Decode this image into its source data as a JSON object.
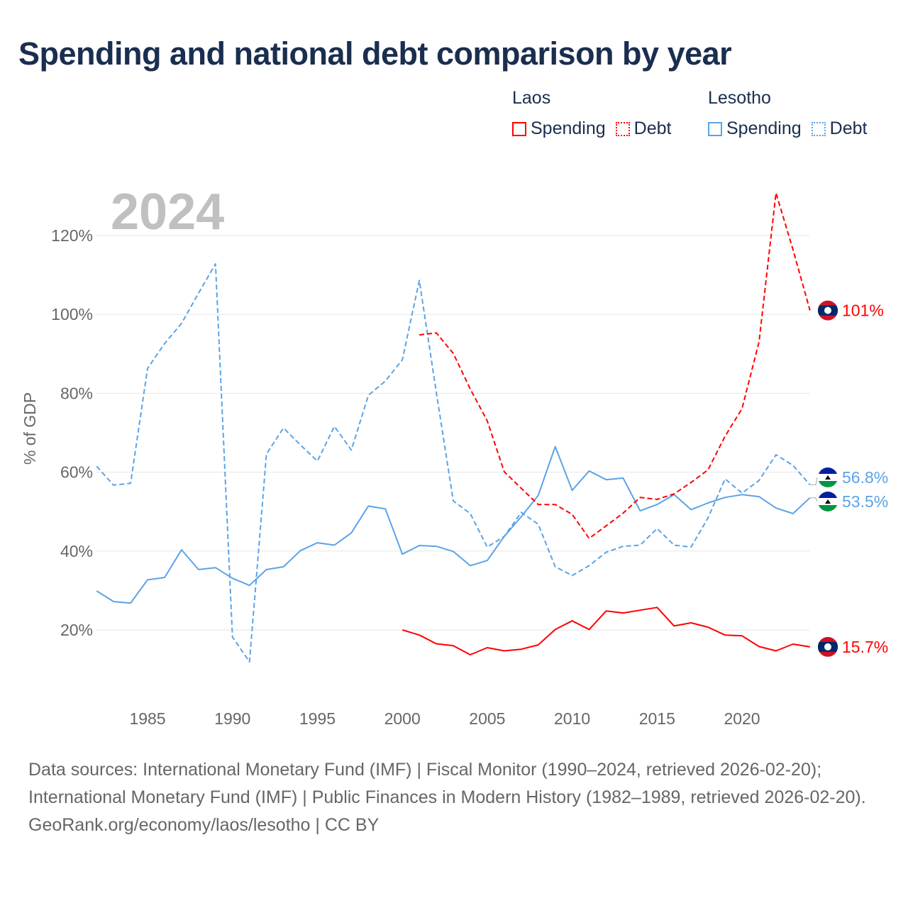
{
  "title": "Spending and national debt comparison by year",
  "legend": {
    "groups": [
      {
        "name": "Laos",
        "items": [
          {
            "label": "Spending",
            "style": "solid",
            "color": "#ff0000"
          },
          {
            "label": "Debt",
            "style": "dotted",
            "color": "#ff0000"
          }
        ]
      },
      {
        "name": "Lesotho",
        "items": [
          {
            "label": "Spending",
            "style": "solid",
            "color": "#5ba3e6"
          },
          {
            "label": "Debt",
            "style": "dotted",
            "color": "#5ba3e6"
          }
        ]
      }
    ]
  },
  "year_label": "2024",
  "footer": {
    "sources": "Data sources: International Monetary Fund (IMF) | Fiscal Monitor (1990–2024, retrieved 2026-02-20); International Monetary Fund (IMF) | Public Finances in Modern History (1982–1989, retrieved 2026-02-20).",
    "credit": "GeoRank.org/economy/laos/lesotho | CC BY"
  },
  "chart_data": {
    "type": "line",
    "title": "Spending and national debt comparison by year",
    "xlabel": "",
    "ylabel": "% of GDP",
    "xlim": [
      1982,
      2024
    ],
    "ylim": [
      0,
      130
    ],
    "grid": true,
    "legend_position": "top-right",
    "x_ticks": [
      1985,
      1990,
      1995,
      2000,
      2005,
      2010,
      2015,
      2020
    ],
    "y_ticks": [
      {
        "value": 20,
        "label": "20%"
      },
      {
        "value": 40,
        "label": "40%"
      },
      {
        "value": 60,
        "label": "60%"
      },
      {
        "value": 80,
        "label": "80%"
      },
      {
        "value": 100,
        "label": "100%"
      },
      {
        "value": 120,
        "label": "120%"
      }
    ],
    "series": [
      {
        "name": "Lesotho Debt",
        "country": "Lesotho",
        "color": "#5ba3e6",
        "dash": true,
        "start": 1982,
        "end_label": "56.8%",
        "values": [
          61.5,
          56.7,
          57.2,
          86.3,
          92.6,
          97.7,
          105.4,
          112.8,
          18.2,
          11.9,
          64.6,
          71.2,
          66.9,
          62.8,
          71.6,
          65.6,
          79.5,
          83.1,
          88.5,
          108.6,
          80.2,
          52.7,
          49.5,
          41,
          43.7,
          49.8,
          46.8,
          36,
          33.8,
          36.3,
          39.7,
          41.2,
          41.5,
          45.7,
          41.5,
          41,
          48.4,
          58.3,
          54.7,
          57.9,
          64.4,
          61.7,
          56.8
        ]
      },
      {
        "name": "Lesotho Spending",
        "country": "Lesotho",
        "color": "#5ba3e6",
        "dash": false,
        "start": 1982,
        "end_label": "53.5%",
        "values": [
          29.9,
          27.2,
          26.8,
          32.7,
          33.3,
          40.3,
          35.3,
          35.8,
          33.1,
          31.3,
          35.3,
          36,
          40.1,
          42.1,
          41.5,
          44.6,
          51.4,
          50.7,
          39.2,
          41.4,
          41.2,
          39.9,
          36.3,
          37.6,
          43.7,
          48.7,
          54.1,
          66.5,
          55.4,
          60.3,
          58.1,
          58.5,
          50.2,
          51.8,
          54.3,
          50.5,
          52.2,
          53.6,
          54.3,
          53.8,
          50.9,
          49.5,
          53.5
        ]
      },
      {
        "name": "Laos Debt",
        "country": "Laos",
        "color": "#ff0000",
        "dash": true,
        "start": 2001,
        "end_label": "101%",
        "values": [
          94.8,
          95.3,
          90.1,
          81.1,
          73,
          60.1,
          55.9,
          51.8,
          51.8,
          49.3,
          43.2,
          46.4,
          49.6,
          53.6,
          53.1,
          54.5,
          57.4,
          60.6,
          69.1,
          76.1,
          93,
          130.8,
          116.4,
          101
        ]
      },
      {
        "name": "Laos Spending",
        "country": "Laos",
        "color": "#ff0000",
        "dash": false,
        "start": 2000,
        "end_label": "15.7%",
        "values": [
          20,
          18.7,
          16.5,
          16,
          13.7,
          15.5,
          14.7,
          15.1,
          16.2,
          20.1,
          22.3,
          20.1,
          24.8,
          24.3,
          25,
          25.7,
          21,
          21.8,
          20.7,
          18.7,
          18.5,
          15.8,
          14.7,
          16.4,
          15.7
        ]
      }
    ]
  }
}
